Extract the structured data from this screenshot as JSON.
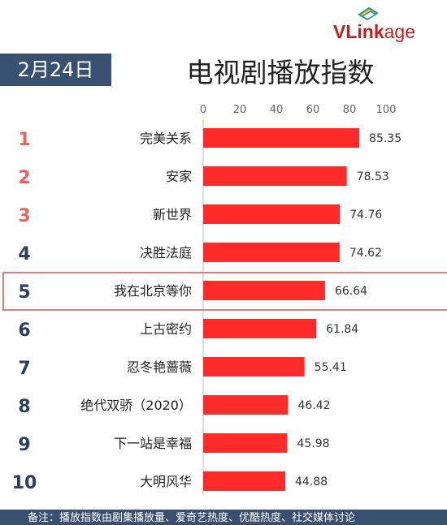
{
  "brand": {
    "logo_main": "VLink",
    "logo_tail": "age"
  },
  "header": {
    "date": "2月24日",
    "title": "电视剧播放指数"
  },
  "chart_data": {
    "type": "bar",
    "orientation": "horizontal",
    "categories": [
      "完美关系",
      "安家",
      "新世界",
      "决胜法庭",
      "我在北京等你",
      "上古密约",
      "忍冬艳蔷薇",
      "绝代双骄（2020）",
      "下一站是幸福",
      "大明风华"
    ],
    "ranks": [
      "1",
      "2",
      "3",
      "4",
      "5",
      "6",
      "7",
      "8",
      "9",
      "10"
    ],
    "values": [
      85.35,
      78.53,
      74.76,
      74.62,
      66.64,
      61.84,
      55.41,
      46.42,
      45.98,
      44.88
    ],
    "value_labels": [
      "85.35",
      "78.53",
      "74.76",
      "74.62",
      "66.64",
      "61.84",
      "55.41",
      "46.42",
      "45.98",
      "44.88"
    ],
    "xlim": [
      0,
      100
    ],
    "x_ticks": [
      "0",
      "20",
      "40",
      "60",
      "80",
      "100"
    ],
    "x_tick_values": [
      0,
      20,
      40,
      60,
      80,
      100
    ],
    "highlighted_index": 4,
    "bar_color": "#ff2b2b",
    "top_rank_color": "#e8635a",
    "rank_color": "#2d3f5c",
    "highlight_border_color": "#d9534f",
    "grid": false
  },
  "footer": {
    "note": "备注：播放指数由剧集播放量、爱奇艺热度、优酷热度、社交媒体讨论"
  }
}
